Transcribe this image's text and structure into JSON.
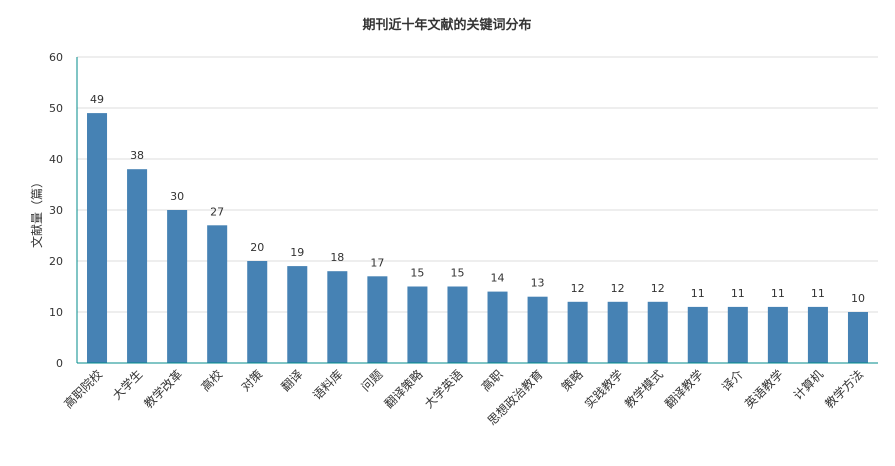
{
  "chart_data": {
    "type": "bar",
    "title": "期刊近十年文献的关键词分布",
    "xlabel": "",
    "ylabel": "文献量（篇）",
    "ylim": [
      0,
      60
    ],
    "yticks": [
      0,
      10,
      20,
      30,
      40,
      50,
      60
    ],
    "grid": true,
    "legend": "none",
    "bar_color": "#4682b4",
    "axis_color": "#008b8b",
    "categories": [
      "高职院校",
      "大学生",
      "教学改革",
      "高校",
      "对策",
      "翻译",
      "语料库",
      "问题",
      "翻译策略",
      "大学英语",
      "高职",
      "思想政治教育",
      "策略",
      "实践教学",
      "教学模式",
      "翻译教学",
      "译介",
      "英语教学",
      "计算机",
      "教学方法"
    ],
    "values": [
      49,
      38,
      30,
      27,
      20,
      19,
      18,
      17,
      15,
      15,
      14,
      13,
      12,
      12,
      12,
      11,
      11,
      11,
      11,
      10
    ]
  }
}
